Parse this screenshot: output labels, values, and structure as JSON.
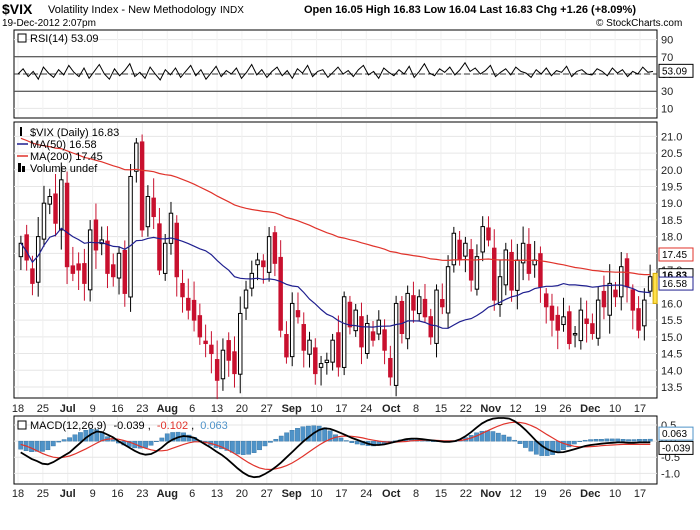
{
  "header": {
    "symbol": "$VIX",
    "name": "Volatility Index - New Methodology",
    "exchange": "INDX",
    "date": "19-Dec-2012 2:07pm",
    "quote": "Open 16.05 High 16.83 Low 16.04 Last 16.83 Chg +1.26 (+8.09%)",
    "copyright": "© StockCharts.com"
  },
  "colors": {
    "up": "#000000",
    "down": "#c8102e",
    "ma50": "#1f1f8f",
    "ma200": "#e0332b",
    "macd": "#000000",
    "signal": "#e0332b",
    "histogram": "#4f93c8",
    "last": "#ffe14d"
  },
  "rsi_panel": {
    "legend": "RSI(14) 53.09",
    "last_label": "53.09",
    "ticks": [
      "90",
      "70",
      "50",
      "30",
      "10"
    ]
  },
  "price_panel": {
    "legend": [
      {
        "text": "$VIX (Daily) 16.83",
        "color": "#000000",
        "marker": "bar"
      },
      {
        "text": "MA(50) 16.58",
        "color": "#1f1f8f",
        "marker": "line"
      },
      {
        "text": "MA(200) 17.45",
        "color": "#e0332b",
        "marker": "line"
      },
      {
        "text": "Volume undef",
        "color": "#000000",
        "marker": "bar"
      }
    ],
    "ticks": [
      "21.0",
      "20.5",
      "20.0",
      "19.5",
      "19.0",
      "18.5",
      "18.0",
      "17.5",
      "17.0",
      "16.5",
      "16.0",
      "15.5",
      "15.0",
      "14.5",
      "14.0",
      "13.5"
    ],
    "last_labels": [
      {
        "text": "17.45",
        "color": "#e0332b",
        "fill": "#ffffff"
      },
      {
        "text": "16.83",
        "color": "#000000",
        "fill": "#ffffff"
      },
      {
        "text": "16.58",
        "color": "#1f1f8f",
        "fill": "#ffffff"
      }
    ]
  },
  "macd_panel": {
    "legend_prefix": "MACD(12,26,9)",
    "macd_value": "-0.039",
    "signal_value": "-0.102",
    "hist_value": "0.063",
    "ticks": [
      "0.5",
      "0.0",
      "-0.5",
      "-1.0"
    ],
    "last_labels": [
      {
        "text": "0.063",
        "color": "#4f93c8"
      },
      {
        "text": "-0.039",
        "color": "#000000"
      }
    ]
  },
  "x_axis_labels": [
    "18",
    "25",
    "Jul",
    "9",
    "16",
    "23",
    "Aug",
    "6",
    "13",
    "20",
    "27",
    "Sep",
    "10",
    "17",
    "24",
    "Oct",
    "8",
    "15",
    "22",
    "Nov",
    "12",
    "19",
    "26",
    "Dec",
    "10",
    "17"
  ],
  "chart_data": [
    {
      "type": "line",
      "title": "RSI(14) 53.09",
      "ylim": [
        0,
        100
      ],
      "reference_lines": [
        70,
        50,
        30
      ],
      "x_range": [
        "2012-06-18",
        "2012-12-19"
      ],
      "series": [
        {
          "name": "RSI(14)",
          "values": [
            50,
            56,
            47,
            53,
            44,
            58,
            51,
            46,
            55,
            49,
            60,
            52,
            47,
            57,
            45,
            53,
            61,
            50,
            44,
            56,
            48,
            54,
            62,
            47,
            52,
            45,
            58,
            50,
            43,
            55,
            49,
            57,
            46,
            53,
            60,
            48,
            55,
            44,
            51,
            59,
            47,
            54,
            50,
            57,
            45,
            52,
            61,
            49,
            55,
            46,
            53,
            58,
            48,
            54,
            45,
            56,
            51,
            60,
            47,
            53,
            55,
            46,
            52,
            58,
            50,
            54,
            47,
            55,
            60,
            49,
            53,
            45,
            57,
            52,
            48,
            55,
            50,
            59,
            46,
            53,
            62,
            51,
            48,
            56,
            52,
            58,
            49,
            55,
            63,
            53,
            57,
            50,
            54,
            60,
            47,
            52,
            56,
            49,
            58,
            53,
            51,
            46,
            55,
            50,
            57,
            48,
            54,
            52,
            59,
            47,
            53,
            55,
            50,
            49,
            56,
            53,
            48,
            57,
            51,
            55,
            47,
            53,
            50,
            58,
            52,
            53
          ]
        }
      ],
      "last": 53.09
    },
    {
      "type": "candlestick",
      "title": "$VIX (Daily) 16.83",
      "ylim": [
        13.2,
        21.4
      ],
      "x_range": [
        "2012-06-18",
        "2012-12-19"
      ],
      "close_series": [
        17.8,
        17.3,
        16.6,
        18.0,
        19.0,
        19.2,
        18.4,
        19.7,
        17.1,
        16.9,
        17.0,
        16.6,
        18.2,
        17.6,
        17.9,
        16.9,
        16.8,
        17.5,
        16.3,
        19.8,
        20.8,
        18.2,
        19.2,
        18.6,
        17.0,
        17.8,
        18.7,
        16.8,
        16.2,
        15.8,
        15.5,
        15.0,
        14.8,
        14.5,
        13.7,
        14.6,
        14.3,
        13.9,
        15.7,
        16.4,
        16.9,
        17.3,
        17.1,
        18.0,
        17.2,
        15.2,
        14.4,
        16.0,
        15.6,
        14.6,
        14.9,
        13.9,
        14.2,
        14.3,
        14.9,
        14.1,
        16.2,
        15.3,
        15.8,
        14.7,
        15.4,
        14.9,
        15.5,
        14.6,
        13.8,
        16.0,
        15.1,
        16.3,
        15.8,
        16.2,
        15.6,
        15.0,
        16.4,
        15.9,
        17.1,
        18.1,
        17.3,
        17.8,
        16.7,
        17.4,
        18.3,
        17.9,
        16.1,
        16.8,
        17.6,
        16.4,
        17.3,
        17.8,
        16.9,
        17.3,
        16.5,
        15.9,
        15.5,
        15.2,
        15.6,
        14.8,
        15.1,
        15.8,
        15.4,
        15.1,
        16.1,
        15.9,
        16.6,
        16.2,
        17.1,
        16.5,
        15.8,
        15.2,
        16.1,
        16.8
      ]
    },
    {
      "type": "line",
      "title": "MACD(12,26,9) -0.039, -0.102, 0.063",
      "ylim": [
        -1.3,
        0.75
      ],
      "x_range": [
        "2012-06-18",
        "2012-12-19"
      ],
      "series": [
        {
          "name": "MACD",
          "values": [
            -0.35,
            -0.45,
            -0.55,
            -0.62,
            -0.7,
            -0.72,
            -0.65,
            -0.55,
            -0.45,
            -0.35,
            -0.2,
            -0.05,
            0.1,
            0.22,
            0.3,
            0.28,
            0.2,
            0.12,
            0.0,
            -0.1,
            -0.2,
            -0.3,
            -0.38,
            -0.42,
            -0.4,
            -0.32,
            -0.2,
            -0.05,
            0.05,
            0.12,
            0.16,
            0.14,
            0.1,
            0.0,
            -0.1,
            -0.2,
            -0.32,
            -0.42,
            -0.55,
            -0.7,
            -0.85,
            -0.98,
            -1.08,
            -1.12,
            -1.1,
            -1.02,
            -0.92,
            -0.8,
            -0.66,
            -0.5,
            -0.34,
            -0.18,
            -0.02,
            0.12,
            0.25,
            0.35,
            0.4,
            0.38,
            0.32,
            0.25,
            0.18,
            0.1,
            0.04,
            -0.02,
            -0.08,
            -0.12,
            -0.12,
            -0.1,
            -0.06,
            -0.02,
            0.02,
            0.06,
            0.08,
            0.08,
            0.06,
            0.04,
            0.02,
            0.0,
            -0.02,
            -0.02,
            0.0,
            0.06,
            0.16,
            0.28,
            0.42,
            0.55,
            0.64,
            0.7,
            0.72,
            0.72,
            0.7,
            0.62,
            0.5,
            0.35,
            0.18,
            0.0,
            -0.14,
            -0.25,
            -0.32,
            -0.35,
            -0.34,
            -0.3,
            -0.25,
            -0.2,
            -0.15,
            -0.12,
            -0.1,
            -0.08,
            -0.06,
            -0.05,
            -0.04,
            -0.04,
            -0.05,
            -0.05,
            -0.04,
            -0.04,
            -0.039
          ]
        },
        {
          "name": "Signal",
          "values": [
            -0.1,
            -0.15,
            -0.22,
            -0.3,
            -0.38,
            -0.45,
            -0.5,
            -0.52,
            -0.5,
            -0.46,
            -0.4,
            -0.32,
            -0.24,
            -0.15,
            -0.06,
            0.02,
            0.06,
            0.08,
            0.06,
            0.02,
            -0.03,
            -0.09,
            -0.16,
            -0.22,
            -0.27,
            -0.3,
            -0.3,
            -0.28,
            -0.22,
            -0.16,
            -0.1,
            -0.05,
            -0.02,
            -0.02,
            -0.04,
            -0.07,
            -0.12,
            -0.18,
            -0.26,
            -0.35,
            -0.45,
            -0.56,
            -0.67,
            -0.76,
            -0.83,
            -0.87,
            -0.88,
            -0.86,
            -0.82,
            -0.76,
            -0.68,
            -0.58,
            -0.47,
            -0.35,
            -0.23,
            -0.12,
            -0.02,
            0.06,
            0.12,
            0.15,
            0.16,
            0.15,
            0.13,
            0.1,
            0.06,
            0.03,
            0.0,
            -0.02,
            -0.03,
            -0.03,
            -0.02,
            -0.01,
            0.01,
            0.02,
            0.03,
            0.03,
            0.03,
            0.02,
            0.01,
            0.01,
            0.01,
            0.02,
            0.05,
            0.1,
            0.16,
            0.24,
            0.32,
            0.4,
            0.47,
            0.53,
            0.57,
            0.59,
            0.58,
            0.55,
            0.49,
            0.41,
            0.31,
            0.2,
            0.1,
            0.0,
            -0.07,
            -0.12,
            -0.16,
            -0.18,
            -0.18,
            -0.17,
            -0.16,
            -0.14,
            -0.13,
            -0.12,
            -0.11,
            -0.1,
            -0.1,
            -0.1,
            -0.1,
            -0.1,
            -0.102
          ]
        },
        {
          "name": "Histogram",
          "values": [
            -0.25,
            -0.3,
            -0.33,
            -0.32,
            -0.32,
            -0.27,
            -0.15,
            -0.03,
            0.05,
            0.11,
            0.2,
            0.27,
            0.34,
            0.37,
            0.36,
            0.26,
            0.14,
            0.04,
            -0.06,
            -0.12,
            -0.17,
            -0.21,
            -0.22,
            -0.2,
            -0.13,
            -0.02,
            0.1,
            0.23,
            0.27,
            0.28,
            0.26,
            0.19,
            0.12,
            0.02,
            -0.06,
            -0.13,
            -0.2,
            -0.24,
            -0.29,
            -0.35,
            -0.4,
            -0.42,
            -0.41,
            -0.36,
            -0.27,
            -0.15,
            -0.04,
            0.06,
            0.16,
            0.26,
            0.34,
            0.4,
            0.45,
            0.47,
            0.48,
            0.47,
            0.42,
            0.32,
            0.2,
            0.1,
            0.02,
            -0.05,
            -0.09,
            -0.12,
            -0.14,
            -0.15,
            -0.12,
            -0.08,
            -0.03,
            0.01,
            0.04,
            0.07,
            0.07,
            0.06,
            0.03,
            0.01,
            -0.01,
            -0.02,
            -0.03,
            -0.03,
            -0.01,
            0.04,
            0.11,
            0.18,
            0.26,
            0.31,
            0.32,
            0.3,
            0.25,
            0.19,
            0.13,
            0.03,
            -0.08,
            -0.2,
            -0.31,
            -0.41,
            -0.45,
            -0.45,
            -0.42,
            -0.35,
            -0.27,
            -0.18,
            -0.09,
            -0.02,
            0.03,
            0.05,
            0.06,
            0.06,
            0.07,
            0.07,
            0.07,
            0.06,
            0.05,
            0.05,
            0.06,
            0.06,
            0.063
          ]
        }
      ]
    }
  ]
}
